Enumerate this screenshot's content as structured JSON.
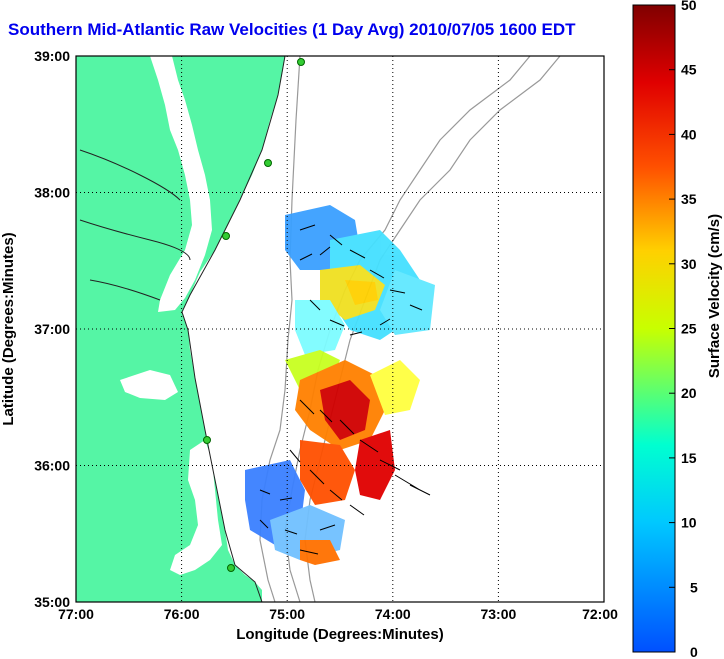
{
  "title": "Southern Mid-Atlantic Raw Velocities (1 Day Avg) 2010/07/05 1600 EDT",
  "map": {
    "xlabel": "Longitude (Degrees:Minutes)",
    "ylabel": "Latitude (Degrees:Minutes)",
    "lon_ticks": [
      "77:00",
      "76:00",
      "75:00",
      "74:00",
      "73:00",
      "72:00"
    ],
    "lat_ticks": [
      "39:00",
      "38:00",
      "37:00",
      "36:00",
      "35:00"
    ],
    "lon_range": [
      -77,
      -72
    ],
    "lat_range": [
      35,
      39
    ],
    "grid": "dotted",
    "land_color": "#55f5a5",
    "water_color": "#ffffff"
  },
  "colorbar": {
    "label": "Surface Velocity (cm/s)",
    "ticks": [
      "50",
      "45",
      "40",
      "35",
      "30",
      "25",
      "20",
      "15",
      "10",
      "5",
      "0"
    ],
    "min": 0,
    "max": 50,
    "colors": [
      "#0050ff",
      "#00c8ff",
      "#00ffd0",
      "#c8ff00",
      "#ffd000",
      "#ff5000",
      "#e00000",
      "#800000"
    ]
  },
  "stations": [
    "station-1",
    "station-2",
    "station-3",
    "station-4",
    "station-5"
  ]
}
